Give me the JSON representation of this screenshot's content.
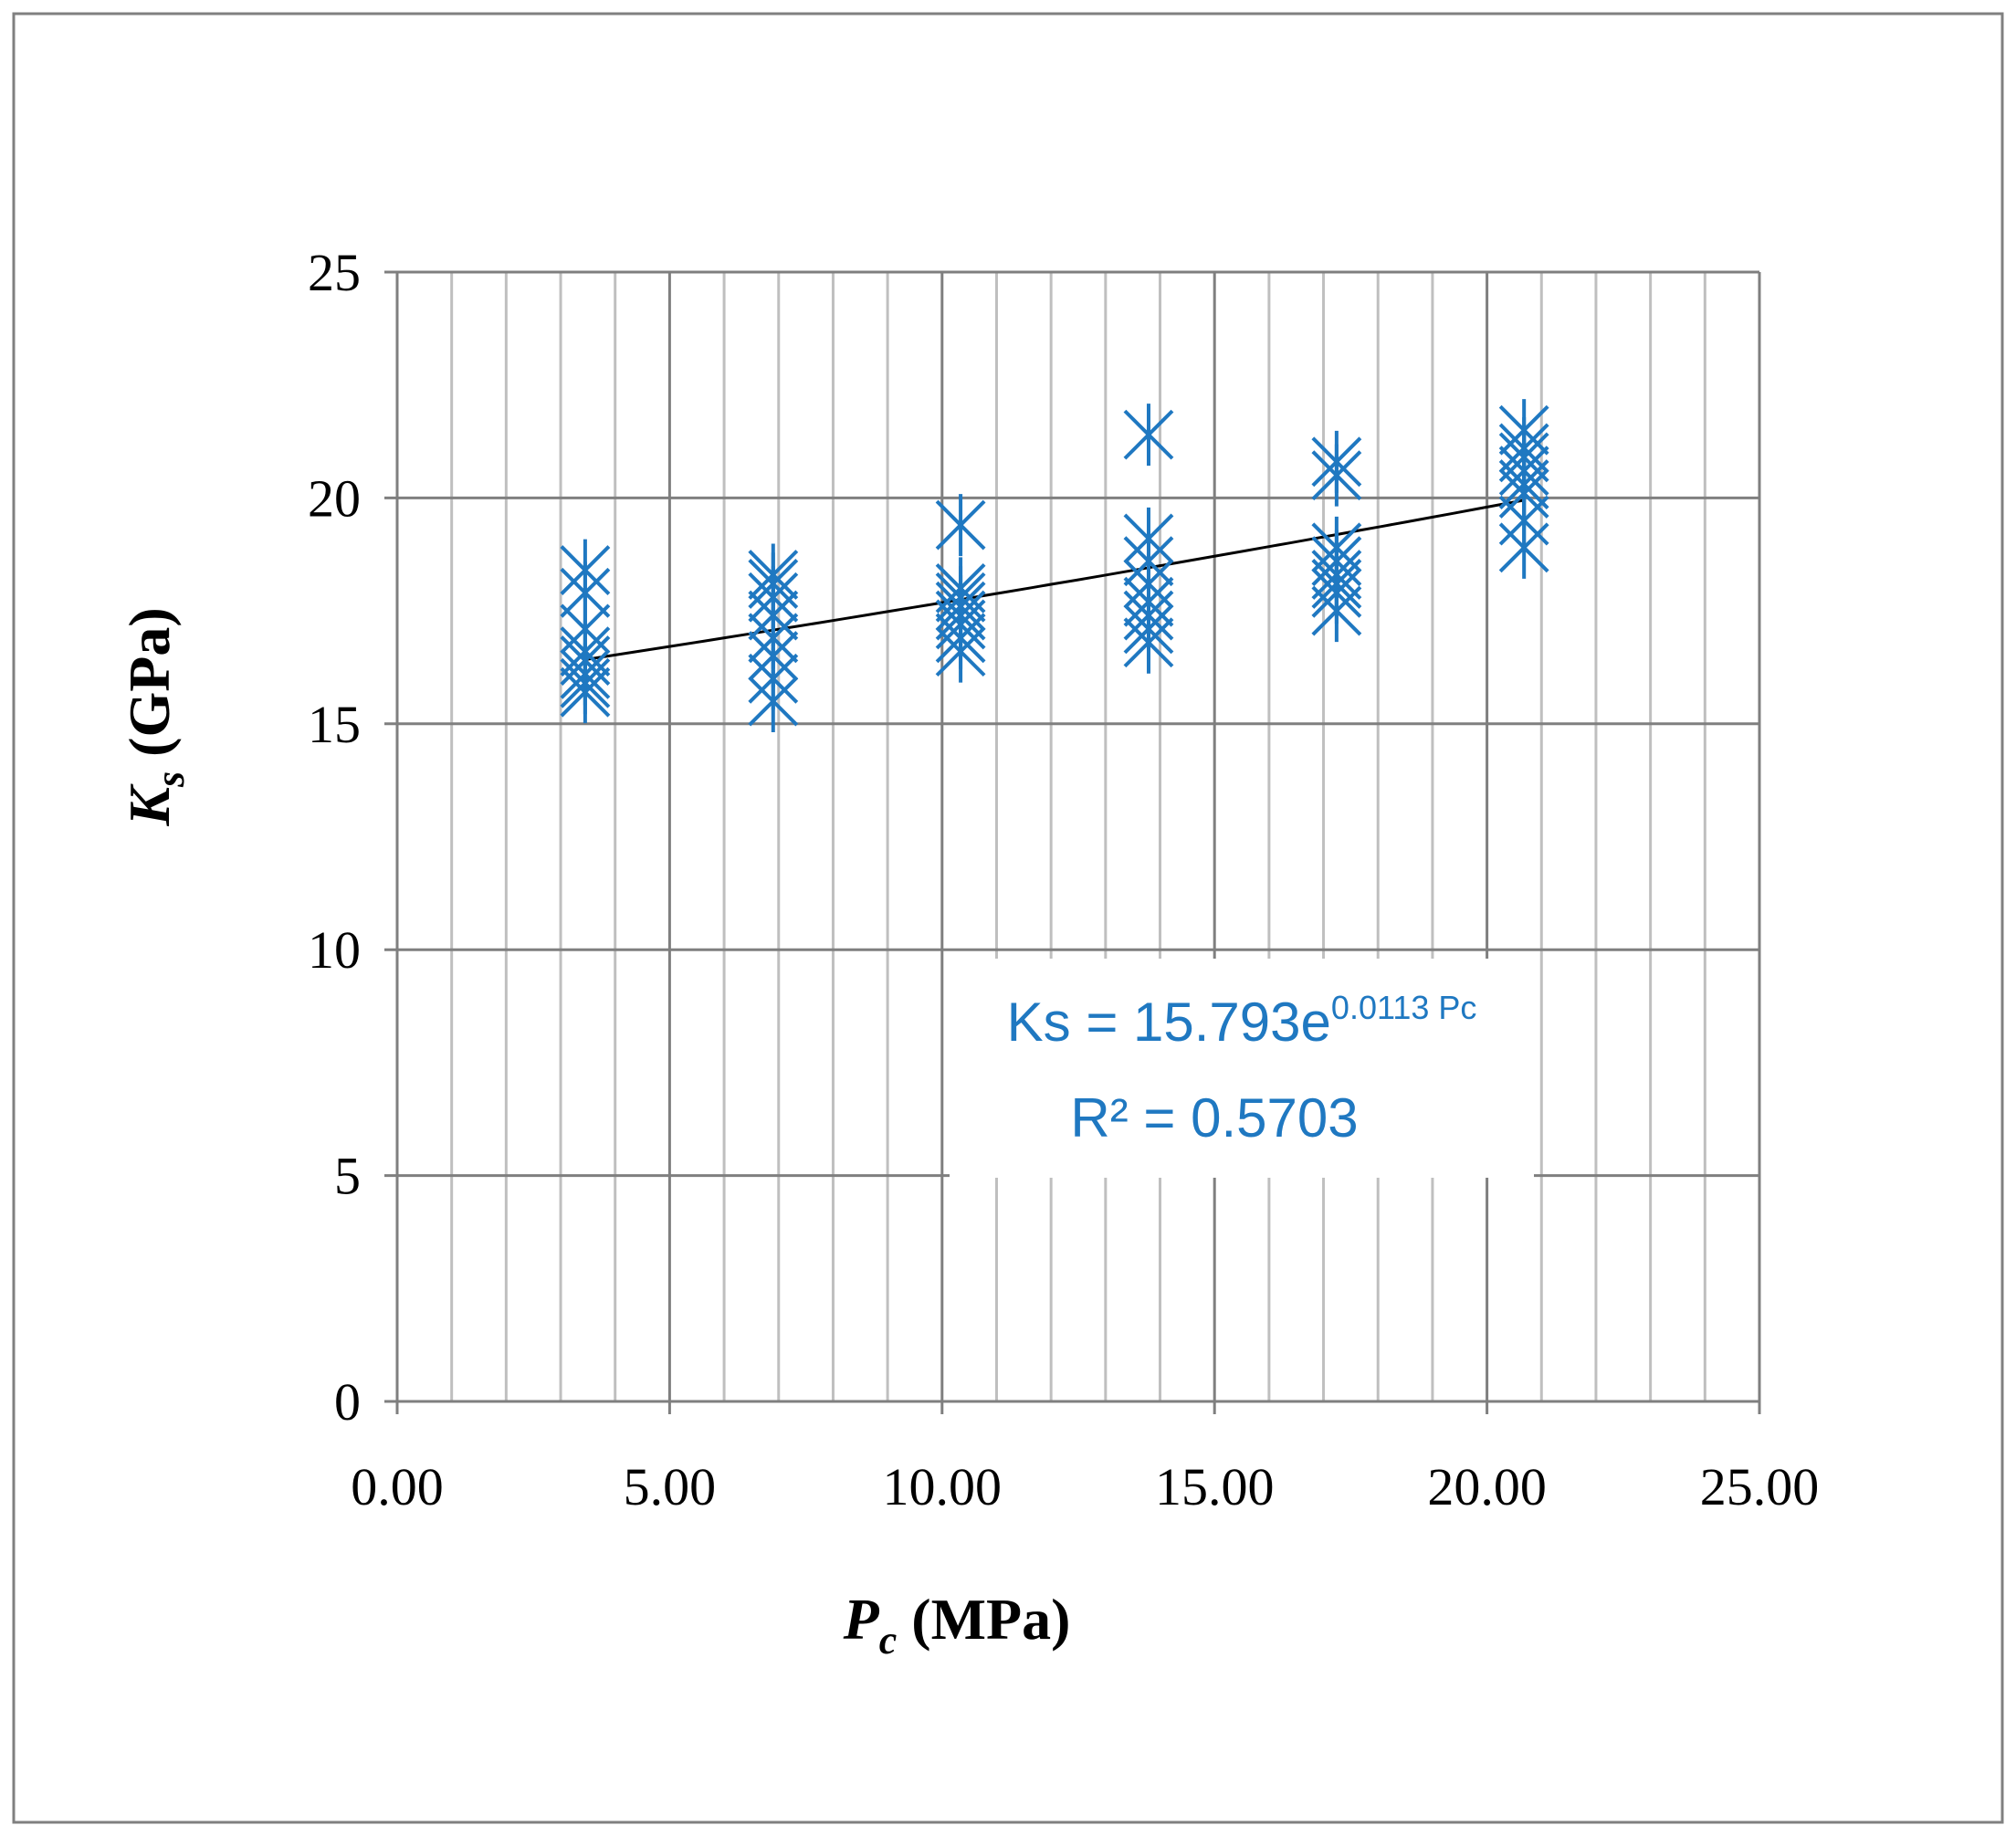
{
  "colors": {
    "marker": "#1f78c1",
    "trendline": "#000000",
    "major_grid": "#7f7f7f",
    "minor_grid": "#bfbfbf",
    "frame": "#808080",
    "text": "#000000",
    "annotation": "#1f78c1"
  },
  "chart_data": {
    "type": "scatter",
    "title": "",
    "xlabel_main": "P",
    "xlabel_sub": "c",
    "xlabel_unit": " (MPa)",
    "ylabel_main": "K",
    "ylabel_sub": "s",
    "ylabel_unit": " (GPa)",
    "xlim": [
      0,
      25
    ],
    "ylim": [
      0,
      25
    ],
    "x_ticks": [
      0,
      5,
      10,
      15,
      20,
      25
    ],
    "x_tick_labels": [
      "0.00",
      "5.00",
      "10.00",
      "15.00",
      "20.00",
      "25.00"
    ],
    "y_ticks": [
      0,
      5,
      10,
      15,
      20,
      25
    ],
    "y_tick_labels": [
      "0",
      "5",
      "10",
      "15",
      "20",
      "25"
    ],
    "minor_x_step": 1,
    "grid": true,
    "marker": "x-asterisk",
    "series": [
      {
        "name": "Ks",
        "points": [
          {
            "x": 3.45,
            "y": 18.4
          },
          {
            "x": 3.45,
            "y": 17.9
          },
          {
            "x": 3.45,
            "y": 17.1
          },
          {
            "x": 3.45,
            "y": 16.6
          },
          {
            "x": 3.45,
            "y": 16.4
          },
          {
            "x": 3.45,
            "y": 16.1
          },
          {
            "x": 3.45,
            "y": 15.9
          },
          {
            "x": 3.45,
            "y": 15.7
          },
          {
            "x": 6.9,
            "y": 18.3
          },
          {
            "x": 6.9,
            "y": 18.1
          },
          {
            "x": 6.9,
            "y": 17.8
          },
          {
            "x": 6.9,
            "y": 17.4
          },
          {
            "x": 6.9,
            "y": 16.9
          },
          {
            "x": 6.9,
            "y": 16.5
          },
          {
            "x": 6.9,
            "y": 16.0
          },
          {
            "x": 6.9,
            "y": 15.5
          },
          {
            "x": 10.34,
            "y": 19.4
          },
          {
            "x": 10.34,
            "y": 18.0
          },
          {
            "x": 10.34,
            "y": 17.8
          },
          {
            "x": 10.34,
            "y": 17.6
          },
          {
            "x": 10.34,
            "y": 17.4
          },
          {
            "x": 10.34,
            "y": 17.2
          },
          {
            "x": 10.34,
            "y": 16.9
          },
          {
            "x": 10.34,
            "y": 16.6
          },
          {
            "x": 13.79,
            "y": 21.4
          },
          {
            "x": 13.79,
            "y": 19.1
          },
          {
            "x": 13.79,
            "y": 18.6
          },
          {
            "x": 13.79,
            "y": 18.1
          },
          {
            "x": 13.79,
            "y": 17.7
          },
          {
            "x": 13.79,
            "y": 17.4
          },
          {
            "x": 13.79,
            "y": 17.1
          },
          {
            "x": 13.79,
            "y": 16.8
          },
          {
            "x": 17.24,
            "y": 20.8
          },
          {
            "x": 17.24,
            "y": 20.5
          },
          {
            "x": 17.24,
            "y": 18.9
          },
          {
            "x": 17.24,
            "y": 18.6
          },
          {
            "x": 17.24,
            "y": 18.3
          },
          {
            "x": 17.24,
            "y": 18.1
          },
          {
            "x": 17.24,
            "y": 17.9
          },
          {
            "x": 17.24,
            "y": 17.5
          },
          {
            "x": 20.68,
            "y": 21.5
          },
          {
            "x": 20.68,
            "y": 21.1
          },
          {
            "x": 20.68,
            "y": 20.9
          },
          {
            "x": 20.68,
            "y": 20.6
          },
          {
            "x": 20.68,
            "y": 20.3
          },
          {
            "x": 20.68,
            "y": 20.1
          },
          {
            "x": 20.68,
            "y": 19.5
          },
          {
            "x": 20.68,
            "y": 18.9
          }
        ]
      }
    ],
    "trendline": {
      "type": "exponential",
      "coef_a": 15.793,
      "coef_b": 0.0113,
      "x_range": [
        3.45,
        20.68
      ],
      "equation_text": "Ks = 15.793e",
      "equation_exponent": "0.0113 Pc",
      "r2_text": "R² = 0.5703"
    }
  }
}
